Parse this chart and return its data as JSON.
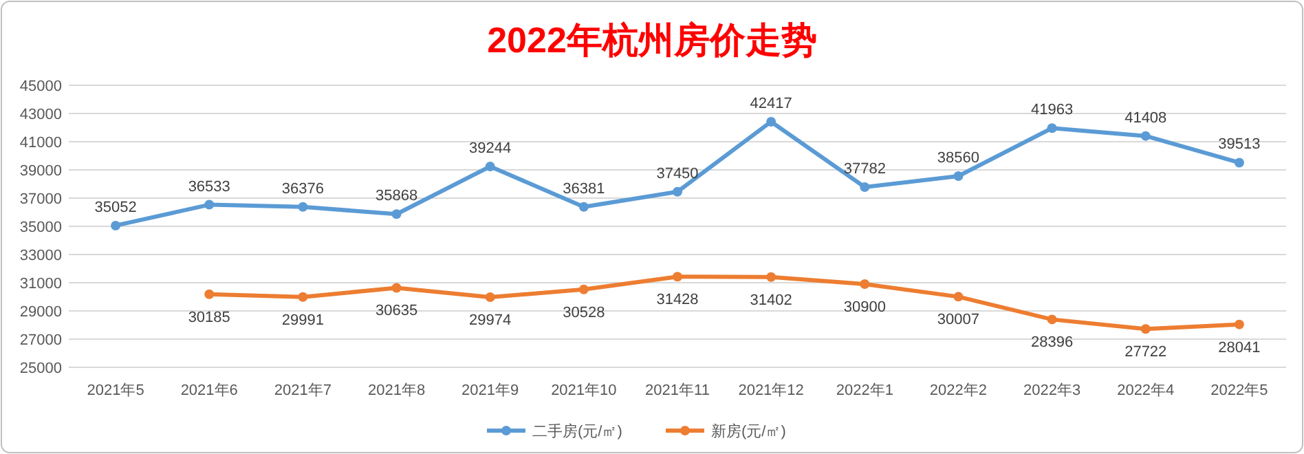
{
  "chart_data": {
    "type": "line",
    "title": "2022年杭州房价走势",
    "categories": [
      "2021年5",
      "2021年6",
      "2021年7",
      "2021年8",
      "2021年9",
      "2021年10",
      "2021年11",
      "2021年12",
      "2022年1",
      "2022年2",
      "2022年3",
      "2022年4",
      "2022年5"
    ],
    "series": [
      {
        "name": "二手房(元/㎡)",
        "color": "#5b9bd5",
        "values": [
          35052,
          36533,
          36376,
          35868,
          39244,
          36381,
          37450,
          42417,
          37782,
          38560,
          41963,
          41408,
          39513
        ]
      },
      {
        "name": "新房(元/㎡)",
        "color": "#ed7d31",
        "values": [
          null,
          30185,
          29991,
          30635,
          29974,
          30528,
          31428,
          31402,
          30900,
          30007,
          28396,
          27722,
          28041
        ]
      }
    ],
    "ylim": [
      25000,
      45000
    ],
    "yticks": [
      25000,
      27000,
      29000,
      31000,
      33000,
      35000,
      37000,
      39000,
      41000,
      43000,
      45000
    ],
    "grid": "y",
    "legend": "bottom",
    "marker": "circle",
    "line_style": "solid",
    "data_labels": true
  }
}
